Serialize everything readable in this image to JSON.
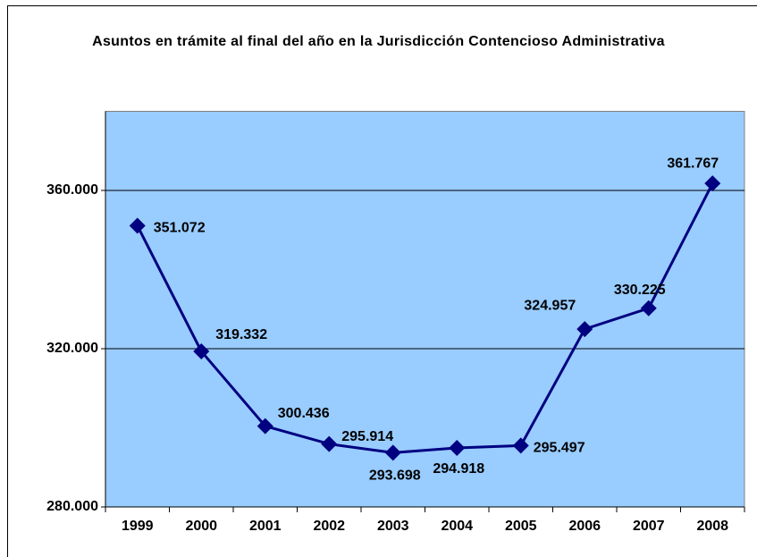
{
  "chart_data": {
    "type": "line",
    "title": "Asuntos en trámite al final del año en la Jurisdicción Contencioso Administrativa",
    "categories": [
      "1999",
      "2000",
      "2001",
      "2002",
      "2003",
      "2004",
      "2005",
      "2006",
      "2007",
      "2008"
    ],
    "series": [
      {
        "name": "Asuntos en trámite",
        "color": "#000080",
        "values": [
          351072,
          319332,
          300436,
          295914,
          293698,
          294918,
          295497,
          324957,
          330225,
          361767
        ],
        "value_labels": [
          "351.072",
          "319.332",
          "300.436",
          "295.914",
          "293.698",
          "294.918",
          "295.497",
          "324.957",
          "330.225",
          "361.767"
        ]
      }
    ],
    "ylim": [
      280000,
      380000
    ],
    "yticks": [
      {
        "value": 280000,
        "label": "280.000"
      },
      {
        "value": 320000,
        "label": "320.000"
      },
      {
        "value": 360000,
        "label": "360.000"
      }
    ],
    "grid": true,
    "plot_background": "#99ccff"
  }
}
